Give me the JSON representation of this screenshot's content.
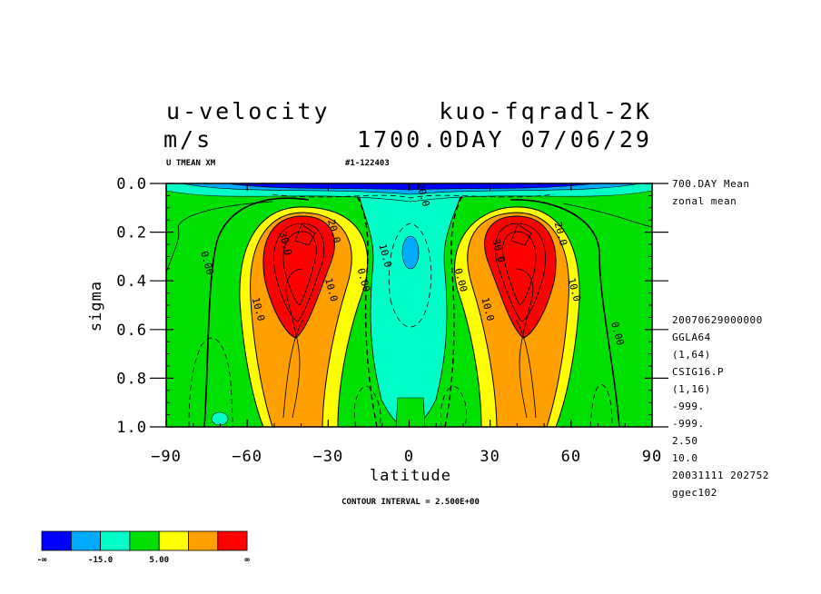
{
  "header": {
    "title_left": "u-velocity",
    "title_right": "kuo-fqradl-2K",
    "units": "m/s",
    "date_line": "1700.0DAY 07/06/29",
    "sub_left": "U TMEAN XM",
    "sub_mid": "#1-122403"
  },
  "side_info": {
    "top": [
      "700.DAY Mean",
      "zonal mean"
    ],
    "bottom": [
      "20070629000000",
      "GGLA64",
      "(1,64)",
      "CSIG16.P",
      "(1,16)",
      "-999.",
      "-999.",
      "2.50",
      "10.0",
      "20031111 202752",
      "ggec102"
    ]
  },
  "footer": {
    "contour_interval": "CONTOUR INTERVAL = 2.500E+00"
  },
  "colorbar": {
    "labels": [
      "-∞",
      "-15.0",
      "5.00",
      "∞"
    ],
    "colors": [
      "#0000ff",
      "#00aaff",
      "#00ffc8",
      "#00e000",
      "#ffff00",
      "#ffa000",
      "#ff0000"
    ]
  },
  "chart_data": {
    "type": "contour",
    "variable": "u-velocity",
    "x": {
      "label": "latitude",
      "range": [
        -90,
        90
      ],
      "ticks": [
        -90,
        -60,
        -30,
        0,
        30,
        60,
        90
      ],
      "tick_labels": [
        "−90",
        "−60",
        "−30",
        "0",
        "30",
        "60",
        "90"
      ]
    },
    "y": {
      "label": "sigma",
      "range": [
        0.0,
        1.0
      ],
      "inverted": true,
      "ticks": [
        0.0,
        0.2,
        0.4,
        0.6,
        0.8,
        1.0
      ],
      "tick_labels": [
        "0.0",
        "0.2",
        "0.4",
        "0.6",
        "0.8",
        "1.0"
      ]
    },
    "contour_interval": 2.5,
    "color_levels": [
      "-∞",
      "-15.0",
      "5.00",
      "∞"
    ],
    "features": [
      {
        "name": "southern jet",
        "lat": -40,
        "sigma": 0.22,
        "max_approx": 40
      },
      {
        "name": "northern jet",
        "lat": 40,
        "sigma": 0.22,
        "max_approx": 40
      },
      {
        "name": "upper easterlies",
        "lat": 0,
        "sigma": 0.02,
        "min_approx": -20
      }
    ],
    "contour_labels": [
      {
        "text": "0.00",
        "lat": -76,
        "sigma": 0.33
      },
      {
        "text": "10.0",
        "lat": -57,
        "sigma": 0.52
      },
      {
        "text": "30.0",
        "lat": -47,
        "sigma": 0.25
      },
      {
        "text": "20.0",
        "lat": -29,
        "sigma": 0.2
      },
      {
        "text": "10.0",
        "lat": -30,
        "sigma": 0.44
      },
      {
        "text": "0.00",
        "lat": -18,
        "sigma": 0.4
      },
      {
        "text": "10.0",
        "lat": -10,
        "sigma": 0.3
      },
      {
        "text": "20.0",
        "lat": 4,
        "sigma": 0.05
      },
      {
        "text": "0.00",
        "lat": 18,
        "sigma": 0.4
      },
      {
        "text": "10.0",
        "lat": 28,
        "sigma": 0.52
      },
      {
        "text": "30.0",
        "lat": 32,
        "sigma": 0.28
      },
      {
        "text": "20.0",
        "lat": 55,
        "sigma": 0.21
      },
      {
        "text": "10.0",
        "lat": 60,
        "sigma": 0.44
      },
      {
        "text": "0.00",
        "lat": 76,
        "sigma": 0.62
      }
    ]
  }
}
